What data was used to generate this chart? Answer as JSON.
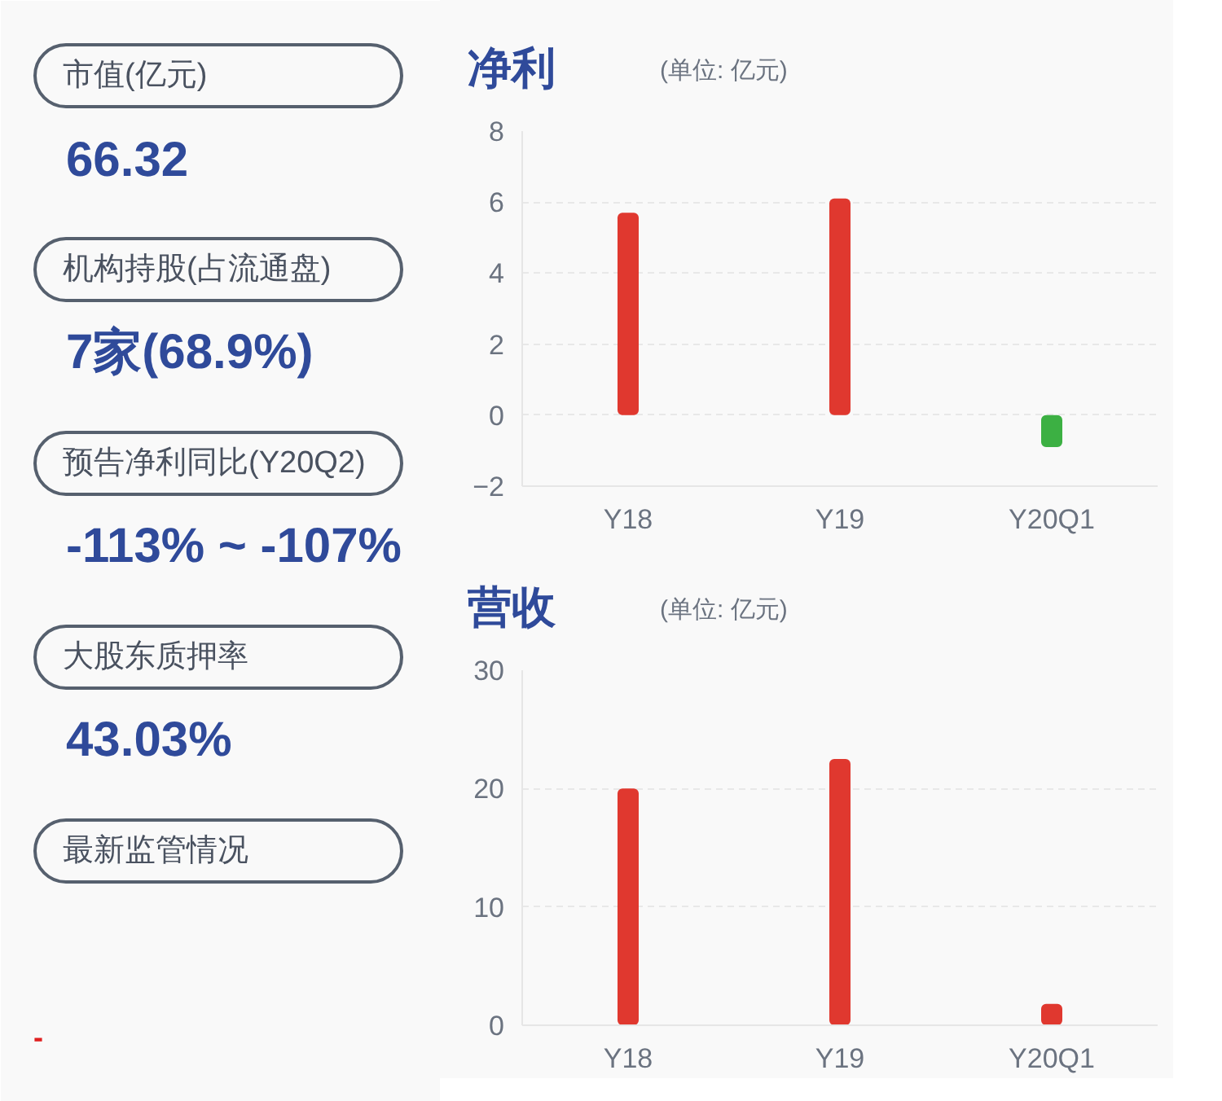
{
  "chart_data": [
    {
      "type": "other",
      "annotations": [
        "市值(亿元)",
        "66.32",
        "机构持股(占流通盘)",
        "7家(68.9%)",
        "预告净利同比(Y20Q2)",
        "-113% ~ -107%",
        "大股东质押率",
        "43.03%",
        "最新监管情况",
        "-"
      ]
    },
    {
      "type": "bar",
      "title": "净利",
      "subtitle": "(单位: 亿元)",
      "categories": [
        "Y18",
        "Y19",
        "Y20Q1"
      ],
      "values": [
        5.7,
        6.1,
        -0.9
      ],
      "colors": [
        "#e0382f",
        "#e0382f",
        "#3cb043"
      ],
      "ylim": [
        -2,
        8
      ],
      "yticks": [
        -2,
        0,
        2,
        4,
        6,
        8
      ],
      "grid": "y"
    },
    {
      "type": "bar",
      "title": "营收",
      "subtitle": "(单位: 亿元)",
      "categories": [
        "Y18",
        "Y19",
        "Y20Q1"
      ],
      "values": [
        20,
        22.5,
        1.8
      ],
      "colors": [
        "#e0382f",
        "#e0382f",
        "#e0382f"
      ],
      "ylim": [
        0,
        30
      ],
      "yticks": [
        0,
        10,
        20,
        30
      ],
      "grid": "y"
    }
  ]
}
